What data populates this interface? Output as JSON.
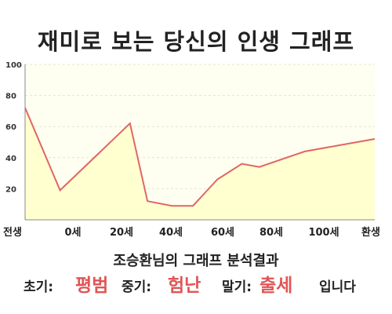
{
  "title": "재미로 보는 당신의 인생 그래프",
  "chart_data": {
    "type": "area",
    "x": [
      "전생",
      "0세",
      "20세",
      "40세",
      "60세",
      "80세",
      "100세",
      "환생"
    ],
    "y_ticks": [
      20,
      40,
      60,
      80,
      100
    ],
    "ylim": [
      0,
      100
    ],
    "series": [
      {
        "points": [
          [
            -10,
            72
          ],
          [
            0,
            19
          ],
          [
            20,
            62
          ],
          [
            25,
            12
          ],
          [
            32,
            9
          ],
          [
            38,
            9
          ],
          [
            45,
            26
          ],
          [
            52,
            36
          ],
          [
            57,
            34
          ],
          [
            70,
            44
          ],
          [
            90,
            52
          ]
        ]
      }
    ],
    "colors": {
      "line": "#e06666",
      "fill": "#ffffd0",
      "plot_bg": "#fefff0"
    },
    "grid": true
  },
  "subtitle": "조승환님의 그래프 분석결과",
  "result": {
    "early_label": "초기:",
    "early_value": "평범",
    "mid_label": "중기:",
    "mid_value": "험난",
    "late_label": "말기:",
    "late_value": "출세",
    "ending": "입니다"
  }
}
